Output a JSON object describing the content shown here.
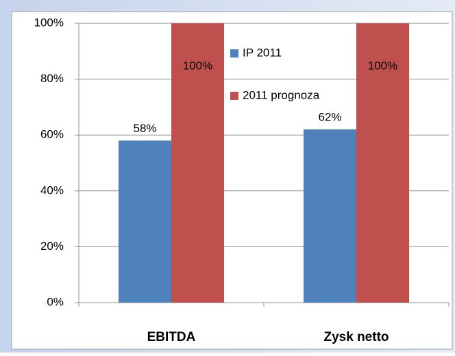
{
  "chart_data": {
    "type": "bar",
    "categories": [
      "EBITDA",
      "Zysk netto"
    ],
    "series": [
      {
        "name": "IP 2011",
        "color": "#4f81bd",
        "values": [
          58,
          62
        ],
        "value_labels": [
          "58%",
          "62%"
        ]
      },
      {
        "name": "2011 prognoza",
        "color": "#c0504d",
        "values": [
          100,
          100
        ],
        "value_labels": [
          "100%",
          "100%"
        ]
      }
    ],
    "ylim": [
      0,
      100
    ],
    "yticks": [
      {
        "value": 0,
        "label": "0%"
      },
      {
        "value": 20,
        "label": "20%"
      },
      {
        "value": 40,
        "label": "40%"
      },
      {
        "value": 60,
        "label": "60%"
      },
      {
        "value": 80,
        "label": "80%"
      },
      {
        "value": 100,
        "label": "100%"
      }
    ],
    "grid": true
  }
}
